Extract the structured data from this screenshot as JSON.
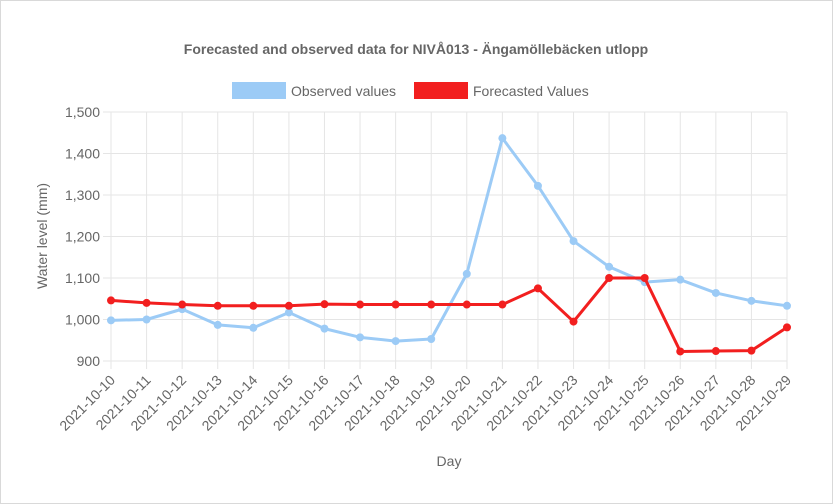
{
  "chart_data": {
    "type": "line",
    "title": "Forecasted and observed data for NIVÅ013 - Ängamöllebäcken utlopp",
    "xlabel": "Day",
    "ylabel": "Water level (mm)",
    "ylim": [
      900,
      1500
    ],
    "yticks": [
      "900",
      "1,000",
      "1,100",
      "1,200",
      "1,300",
      "1,400",
      "1,500"
    ],
    "ytick_values": [
      900,
      1000,
      1100,
      1200,
      1300,
      1400,
      1500
    ],
    "grid": true,
    "legend_position": "top",
    "categories": [
      "2021-10-10",
      "2021-10-11",
      "2021-10-12",
      "2021-10-13",
      "2021-10-14",
      "2021-10-15",
      "2021-10-16",
      "2021-10-17",
      "2021-10-18",
      "2021-10-19",
      "2021-10-20",
      "2021-10-21",
      "2021-10-22",
      "2021-10-23",
      "2021-10-24",
      "2021-10-25",
      "2021-10-26",
      "2021-10-27",
      "2021-10-28",
      "2021-10-29"
    ],
    "series": [
      {
        "name": "Observed values",
        "color": "#9ccbf6",
        "values": [
          998,
          1000,
          1025,
          987,
          980,
          1017,
          978,
          957,
          948,
          953,
          1110,
          1437,
          1322,
          1189,
          1127,
          1090,
          1096,
          1064,
          1045,
          1033
        ]
      },
      {
        "name": "Forecasted Values",
        "color": "#f21f1f",
        "values": [
          1046,
          1040,
          1036,
          1033,
          1033,
          1033,
          1037,
          1036,
          1036,
          1036,
          1036,
          1036,
          1075,
          995,
          1100,
          1100,
          923,
          924,
          925,
          981
        ]
      }
    ]
  }
}
